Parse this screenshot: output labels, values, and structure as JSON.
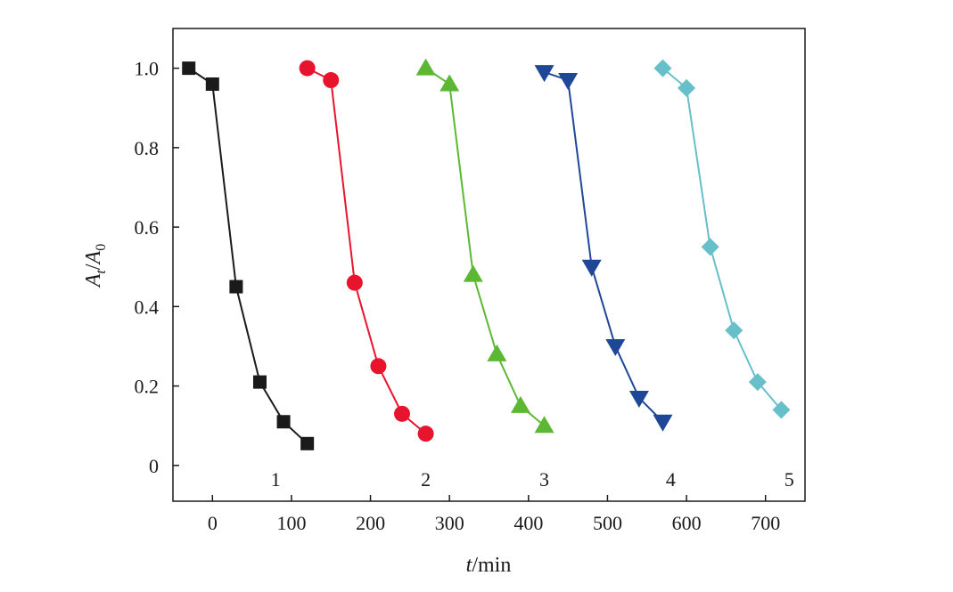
{
  "chart_data": {
    "type": "scatter",
    "xlabel_italic": "t",
    "xlabel_rest": "/min",
    "ylabel_num_base": "A",
    "ylabel_num_sub": "t",
    "ylabel_sep": "/",
    "ylabel_den_base": "A",
    "ylabel_den_sub": "0",
    "xlim": [
      -50,
      750
    ],
    "ylim": [
      -0.09,
      1.1
    ],
    "xticks": [
      0,
      100,
      200,
      300,
      400,
      500,
      600,
      700
    ],
    "xtick_labels": [
      "0",
      "100",
      "200",
      "300",
      "400",
      "500",
      "600",
      "700"
    ],
    "yticks": [
      0,
      0.2,
      0.4,
      0.6,
      0.8,
      1.0
    ],
    "ytick_labels": [
      "0",
      "0.2",
      "0.4",
      "0.6",
      "0.8",
      "1.0"
    ],
    "grid": false,
    "series": [
      {
        "label": "1",
        "label_x": 80,
        "color": "#1a1a1a",
        "marker": "square",
        "x": [
          -30,
          0,
          30,
          60,
          90,
          120
        ],
        "y": [
          1.0,
          0.96,
          0.45,
          0.21,
          0.11,
          0.055
        ]
      },
      {
        "label": "2",
        "label_x": 270,
        "color": "#e8132c",
        "marker": "circle",
        "x": [
          120,
          150,
          180,
          210,
          240,
          270
        ],
        "y": [
          1.0,
          0.97,
          0.46,
          0.25,
          0.13,
          0.08
        ]
      },
      {
        "label": "3",
        "label_x": 420,
        "color": "#5cb833",
        "marker": "triangle-up",
        "x": [
          270,
          300,
          330,
          360,
          390,
          420
        ],
        "y": [
          1.0,
          0.96,
          0.48,
          0.28,
          0.15,
          0.1
        ]
      },
      {
        "label": "4",
        "label_x": 580,
        "color": "#1e4797",
        "marker": "triangle-down",
        "x": [
          420,
          450,
          480,
          510,
          540,
          570
        ],
        "y": [
          0.99,
          0.97,
          0.5,
          0.3,
          0.17,
          0.11
        ]
      },
      {
        "label": "5",
        "label_x": 730,
        "color": "#67bfca",
        "marker": "diamond",
        "x": [
          570,
          600,
          630,
          660,
          690,
          720
        ],
        "y": [
          1.0,
          0.95,
          0.55,
          0.34,
          0.21,
          0.14
        ]
      }
    ]
  }
}
